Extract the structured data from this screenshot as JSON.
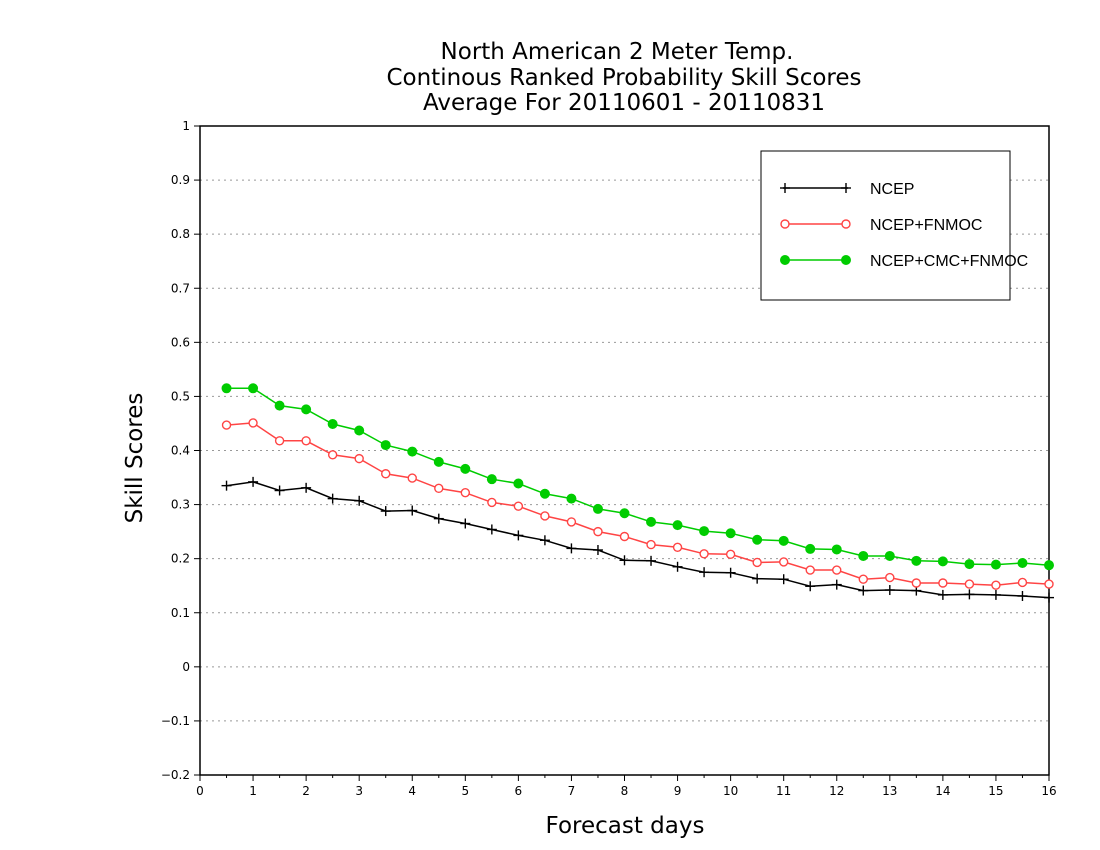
{
  "chart_data": {
    "type": "line",
    "title": [
      "North American 2 Meter Temp.",
      "Continous Ranked Probability Skill Scores",
      "Average For 20110601 - 20110831"
    ],
    "xlabel": "Forecast days",
    "ylabel": "Skill Scores",
    "xlim": [
      0,
      16
    ],
    "ylim": [
      -0.2,
      1
    ],
    "xticks": [
      0,
      1,
      2,
      3,
      4,
      5,
      6,
      7,
      8,
      9,
      10,
      11,
      12,
      13,
      14,
      15,
      16
    ],
    "xtick_labels": [
      "0",
      "1",
      "2",
      "3",
      "4",
      "5",
      "6",
      "7",
      "8",
      "9",
      "10",
      "11",
      "12",
      "13",
      "14",
      "15",
      "16"
    ],
    "yticks": [
      -0.2,
      -0.1,
      0,
      0.1,
      0.2,
      0.3,
      0.4,
      0.5,
      0.6,
      0.7,
      0.8,
      0.9,
      1
    ],
    "ytick_labels": [
      "−0.2",
      "−0.1",
      "0",
      "0.1",
      "0.2",
      "0.3",
      "0.4",
      "0.5",
      "0.6",
      "0.7",
      "0.8",
      "0.9",
      "1"
    ],
    "grid": "horizontal dotted",
    "legend_position": "top-right",
    "x": [
      0.5,
      1,
      1.5,
      2,
      2.5,
      3,
      3.5,
      4,
      4.5,
      5,
      5.5,
      6,
      6.5,
      7,
      7.5,
      8,
      8.5,
      9,
      9.5,
      10,
      10.5,
      11,
      11.5,
      12,
      12.5,
      13,
      13.5,
      14,
      14.5,
      15,
      15.5,
      16
    ],
    "series": [
      {
        "name": "NCEP",
        "color": "#000000",
        "marker": "plus",
        "values": [
          0.335,
          0.342,
          0.326,
          0.331,
          0.311,
          0.307,
          0.288,
          0.289,
          0.274,
          0.265,
          0.254,
          0.243,
          0.234,
          0.219,
          0.216,
          0.197,
          0.196,
          0.185,
          0.175,
          0.174,
          0.163,
          0.162,
          0.149,
          0.152,
          0.141,
          0.142,
          0.141,
          0.133,
          0.134,
          0.133,
          0.131,
          0.128
        ]
      },
      {
        "name": "NCEP+FNMOC",
        "color": "#ff4444",
        "marker": "open-circle",
        "values": [
          0.447,
          0.451,
          0.418,
          0.418,
          0.392,
          0.385,
          0.357,
          0.349,
          0.33,
          0.322,
          0.304,
          0.297,
          0.279,
          0.268,
          0.25,
          0.241,
          0.226,
          0.221,
          0.209,
          0.208,
          0.193,
          0.194,
          0.179,
          0.179,
          0.162,
          0.165,
          0.155,
          0.155,
          0.153,
          0.151,
          0.156,
          0.153
        ]
      },
      {
        "name": "NCEP+CMC+FNMOC",
        "color": "#00cc00",
        "marker": "filled-circle",
        "values": [
          0.515,
          0.515,
          0.483,
          0.476,
          0.449,
          0.437,
          0.41,
          0.398,
          0.379,
          0.366,
          0.347,
          0.339,
          0.32,
          0.311,
          0.292,
          0.284,
          0.268,
          0.262,
          0.251,
          0.247,
          0.235,
          0.233,
          0.218,
          0.217,
          0.205,
          0.205,
          0.196,
          0.195,
          0.19,
          0.189,
          0.192,
          0.188
        ]
      }
    ]
  }
}
